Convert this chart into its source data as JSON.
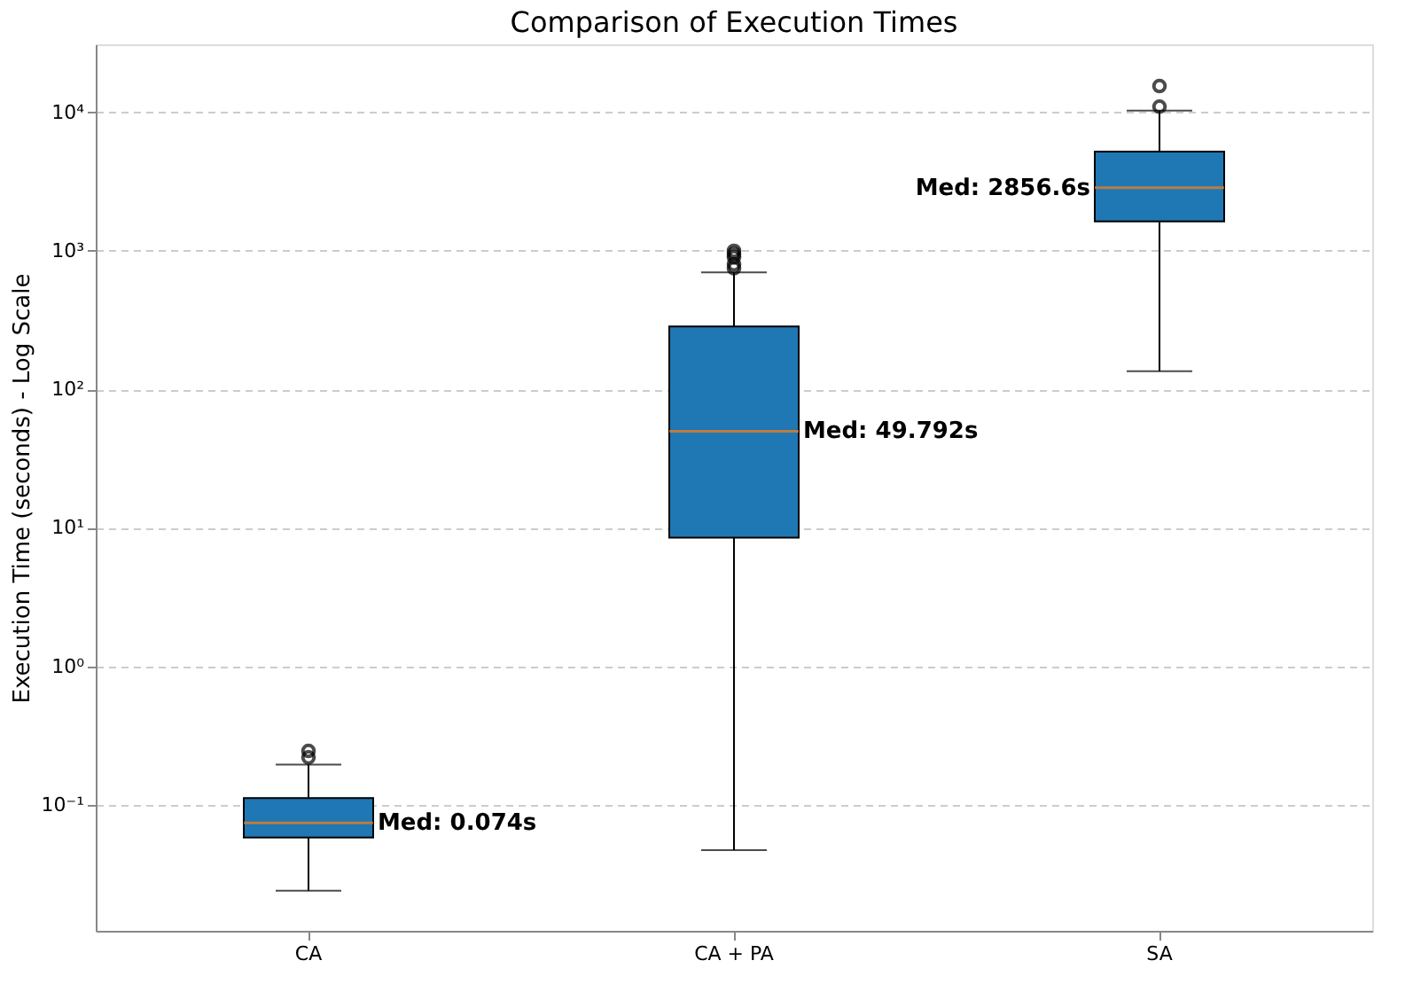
{
  "chart_data": {
    "type": "box",
    "title": "Comparison of Execution Times",
    "ylabel": "Execution Time (seconds) - Log Scale",
    "categories": [
      "CA",
      "CA + PA",
      "SA"
    ],
    "series": [
      {
        "color": "#1f77b4",
        "boxes": [
          {
            "low": 0.024,
            "q1": 0.058,
            "median": 0.074,
            "q3": 0.112,
            "high": 0.195,
            "outliers": [
              0.22,
              0.245
            ]
          },
          {
            "low": 0.047,
            "q1": 8.5,
            "median": 49.792,
            "q3": 285,
            "high": 700,
            "outliers": [
              750,
              800,
              900,
              950,
              1000
            ]
          },
          {
            "low": 135,
            "q1": 1630,
            "median": 2856.6,
            "q3": 5200,
            "high": 10300,
            "outliers": [
              11000,
              15500
            ]
          }
        ]
      }
    ],
    "log": true,
    "ylim": [
      0.0123,
      31000
    ],
    "yticks": [
      {
        "value": 0.1,
        "label": "10⁻¹"
      },
      {
        "value": 1,
        "label": "10⁰"
      },
      {
        "value": 10,
        "label": "10¹"
      },
      {
        "value": 100,
        "label": "10²"
      },
      {
        "value": 1000,
        "label": "10³"
      },
      {
        "value": 10000,
        "label": "10⁴"
      }
    ],
    "grid": "y",
    "annotations": [
      "Med: 0.074s",
      "Med: 49.792s",
      "Med: 2856.6s"
    ]
  }
}
